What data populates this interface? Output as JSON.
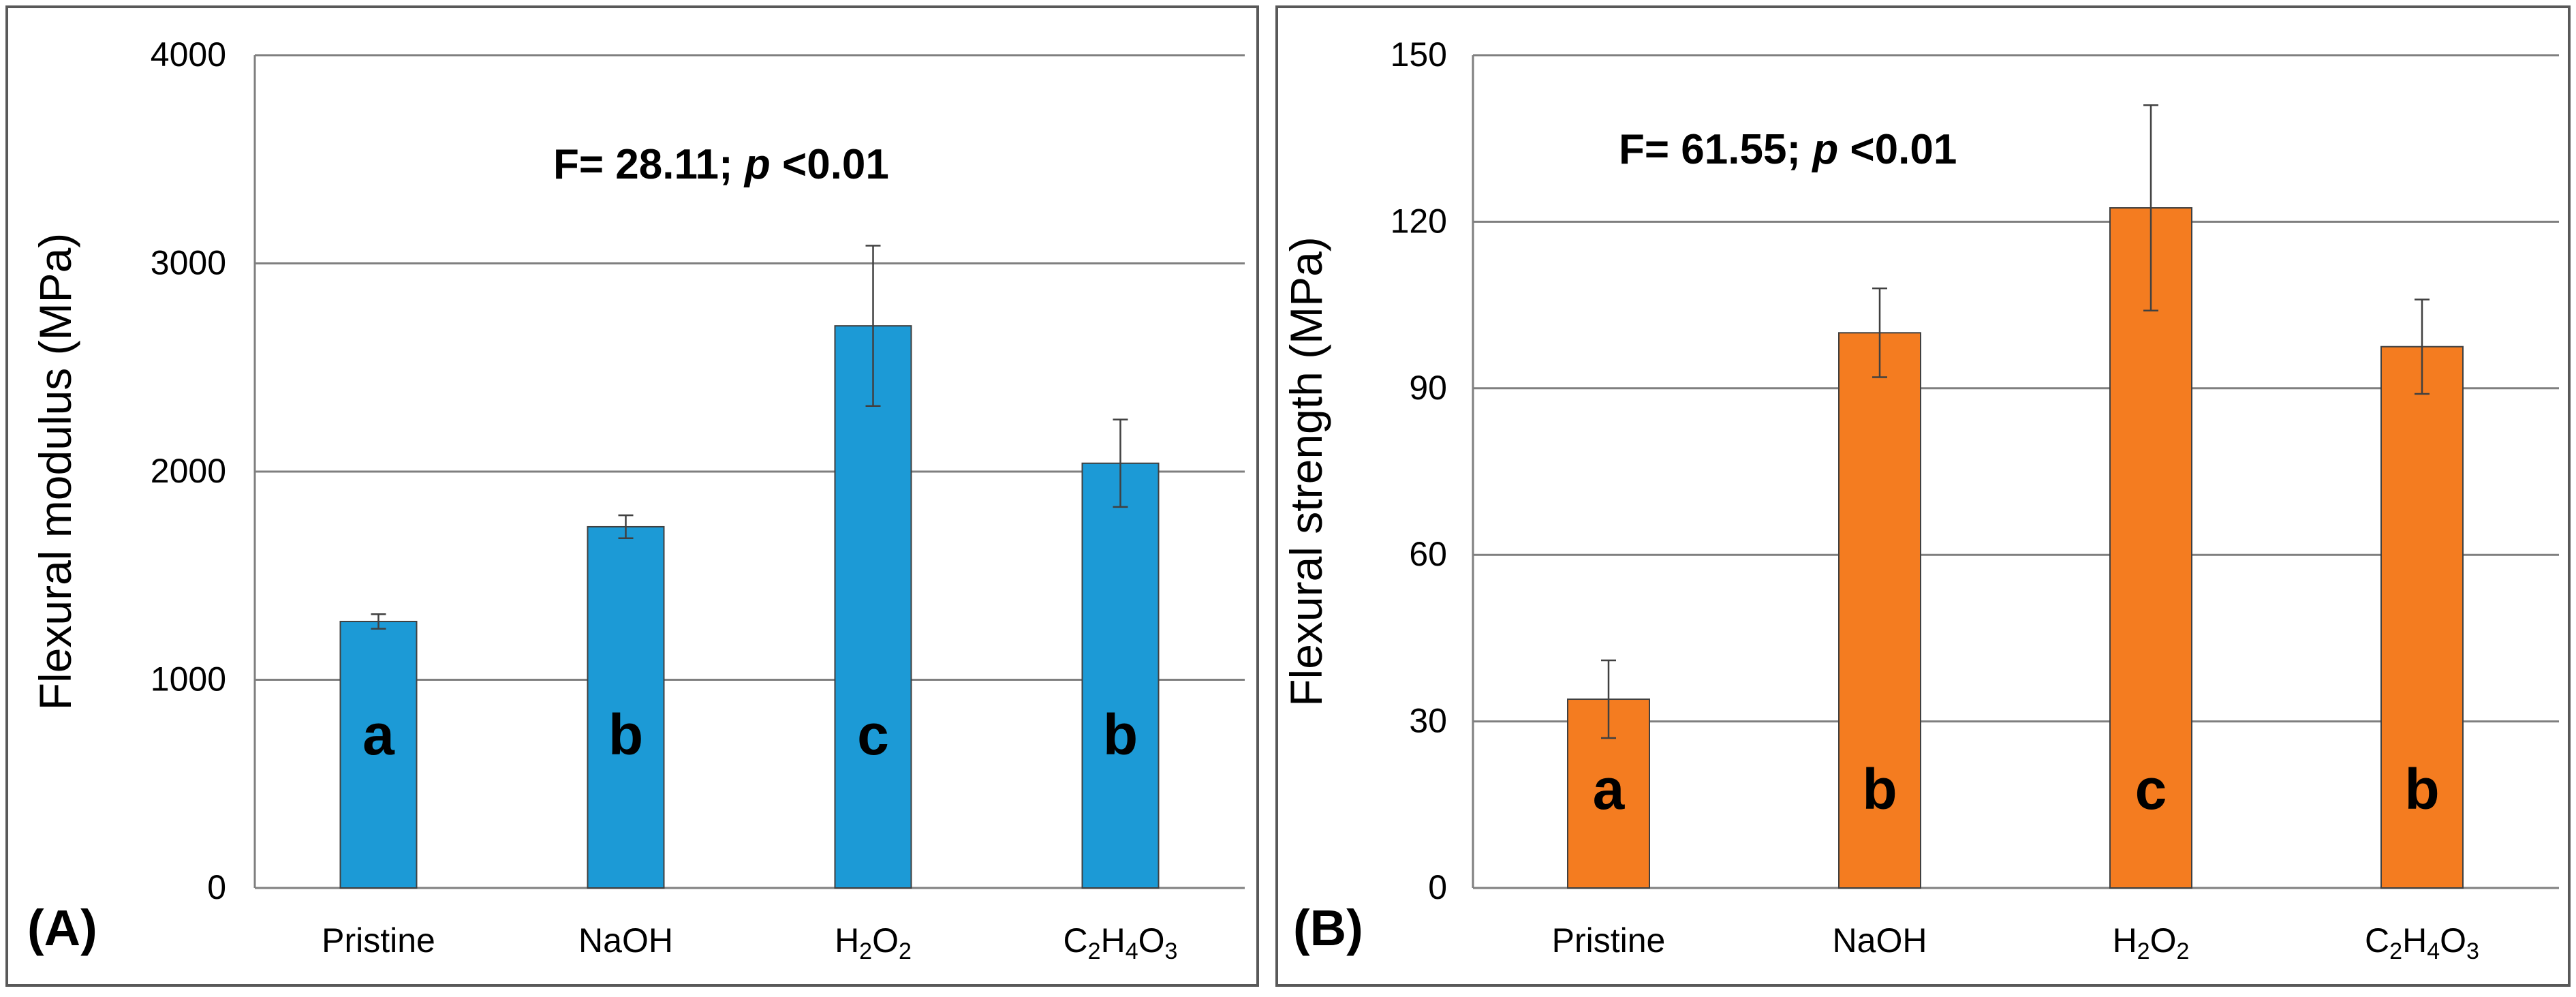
{
  "chart_data": [
    {
      "type": "bar",
      "panel_label": "(A)",
      "categories": [
        "Pristine",
        "NaOH",
        "H2O2",
        "C2H4O3"
      ],
      "category_display": [
        [
          {
            "t": "Pristine"
          }
        ],
        [
          {
            "t": "NaOH"
          }
        ],
        [
          {
            "t": "H"
          },
          {
            "t": "2",
            "sub": true
          },
          {
            "t": "O"
          },
          {
            "t": "2",
            "sub": true
          }
        ],
        [
          {
            "t": "C"
          },
          {
            "t": "2",
            "sub": true
          },
          {
            "t": "H"
          },
          {
            "t": "4",
            "sub": true
          },
          {
            "t": "O"
          },
          {
            "t": "3",
            "sub": true
          }
        ]
      ],
      "values": [
        1280,
        1735,
        2700,
        2040
      ],
      "errors": [
        35,
        55,
        385,
        210
      ],
      "group_letters": [
        "a",
        "b",
        "c",
        "b"
      ],
      "bar_color": "#1c9ad6",
      "ylabel": "Flexural modulus (MPa)",
      "xlabel": "",
      "ylim": [
        0,
        4000
      ],
      "yticks": [
        0,
        1000,
        2000,
        3000,
        4000
      ],
      "stat_prefix": "F= 28.11; ",
      "stat_p": "p",
      "stat_suffix": " <0.01",
      "grid": true
    },
    {
      "type": "bar",
      "panel_label": "(B)",
      "categories": [
        "Pristine",
        "NaOH",
        "H2O2",
        "C2H4O3"
      ],
      "category_display": [
        [
          {
            "t": "Pristine"
          }
        ],
        [
          {
            "t": "NaOH"
          }
        ],
        [
          {
            "t": "H"
          },
          {
            "t": "2",
            "sub": true
          },
          {
            "t": "O"
          },
          {
            "t": "2",
            "sub": true
          }
        ],
        [
          {
            "t": "C"
          },
          {
            "t": "2",
            "sub": true
          },
          {
            "t": "H"
          },
          {
            "t": "4",
            "sub": true
          },
          {
            "t": "O"
          },
          {
            "t": "3",
            "sub": true
          }
        ]
      ],
      "values": [
        34,
        100,
        122.5,
        97.5
      ],
      "errors": [
        7,
        8,
        18.5,
        8.5
      ],
      "group_letters": [
        "a",
        "b",
        "c",
        "b"
      ],
      "bar_color": "#f47c20",
      "ylabel": "Flexural strength (MPa)",
      "xlabel": "",
      "ylim": [
        0,
        150
      ],
      "yticks": [
        0,
        30,
        60,
        90,
        120,
        150
      ],
      "stat_prefix": "F= 61.55; ",
      "stat_p": "p",
      "stat_suffix": " <0.01",
      "grid": true
    }
  ]
}
